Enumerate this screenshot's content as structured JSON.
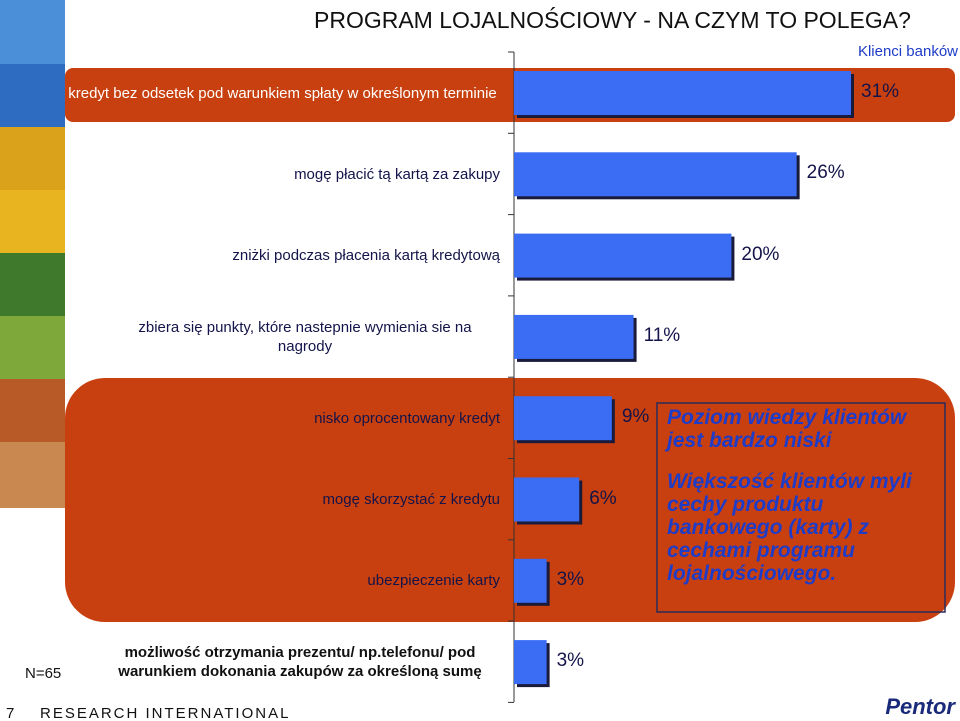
{
  "chart_data": {
    "type": "hbar",
    "title": "PROGRAM LOJALNOŚCIOWY - NA CZYM TO POLEGA?",
    "categories": [
      "kredyt bez odsetek pod warunkiem spłaty w określonym terminie",
      "mogę płacić tą kartą za zakupy",
      "zniżki podczas płacenia kartą kredytową",
      "zbiera się punkty, które nastepnie wymienia sie na nagrody",
      "nisko oprocentowany kredyt",
      "mogę skorzystać z kredytu",
      "ubezpieczenie karty",
      "możliwość otrzymania prezentu/ np.telefonu/ pod warunkiem dokonania zakupów za określoną sumę"
    ],
    "series": [
      {
        "name": "Klienci banków",
        "color": "#3a6cf4",
        "values": [
          31,
          26,
          20,
          11,
          9,
          6,
          3,
          3
        ],
        "value_labels": [
          "31%",
          "26%",
          "20%",
          "11%",
          "9%",
          "6%",
          "3%",
          "3%"
        ]
      }
    ],
    "callout": [
      "Poziom wiedzy klientów jest bardzo niski",
      "Większość klientów myli cechy produktu bankowego (karty) z cechami programu lojalnościowego."
    ],
    "sample": "N=65",
    "page_number": "7",
    "footer": "RESEARCH INTERNATIONAL",
    "logo": "Pentor"
  }
}
